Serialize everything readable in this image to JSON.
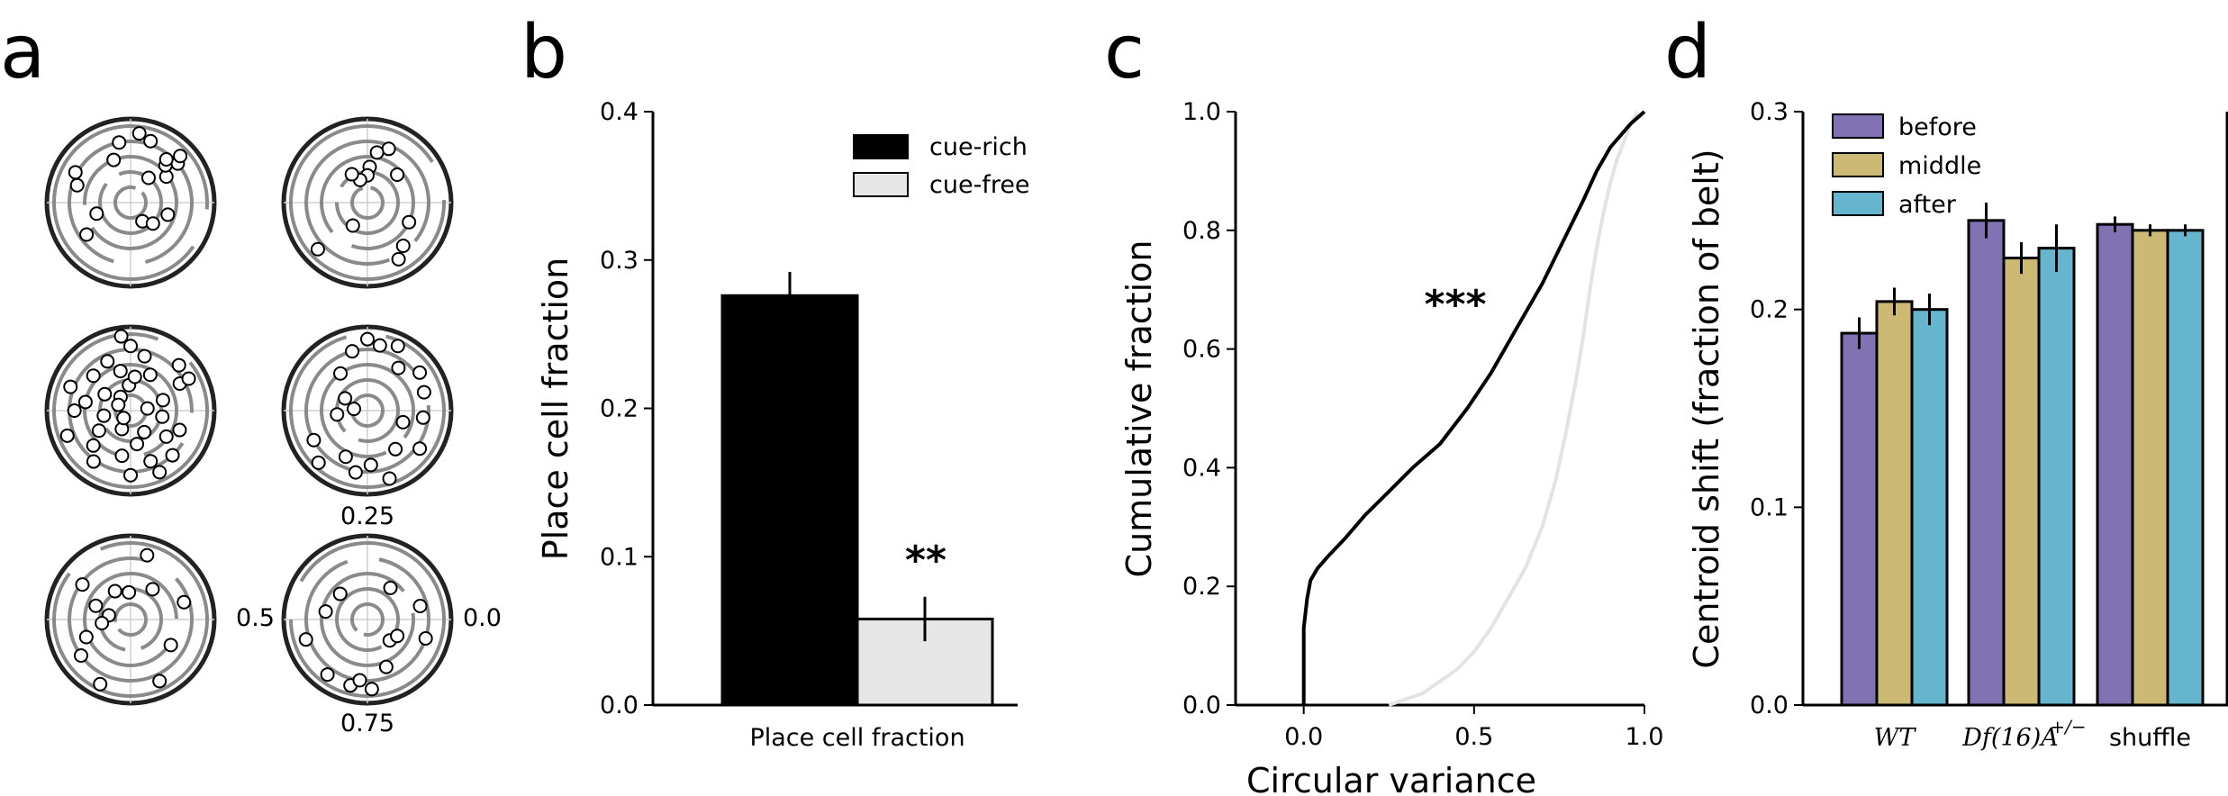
{
  "panels": {
    "a": "a",
    "b": "b",
    "c": "c",
    "d": "d"
  },
  "polar_labels": {
    "top": "0.25",
    "left": "0.5",
    "right": "0.0",
    "bottom": "0.75"
  },
  "colors": {
    "cue_rich": "#000000",
    "cue_free": "#e6e6e6",
    "before": "#8173b3",
    "middle": "#ccb974",
    "after": "#64b5cd",
    "ring": "#8a8a8a",
    "curve_cue_free": "#e3e3e3"
  },
  "chart_data": [
    {
      "panel": "a",
      "type": "scatter",
      "description_rings": 5,
      "plots": [
        {
          "points": [
            [
              0.1,
              0.26
            ],
            [
              0.11,
              0.36
            ],
            [
              0.12,
              0.4
            ],
            [
              0.13,
              0.3
            ],
            [
              0.14,
              0.33
            ],
            [
              0.15,
              0.18
            ],
            [
              0.2,
              0.38
            ],
            [
              0.23,
              0.41
            ],
            [
              0.28,
              0.36
            ],
            [
              0.31,
              0.27
            ],
            [
              0.42,
              0.37
            ],
            [
              0.45,
              0.33
            ],
            [
              0.55,
              0.21
            ],
            [
              0.6,
              0.32
            ],
            [
              0.84,
              0.13
            ],
            [
              0.88,
              0.18
            ],
            [
              0.95,
              0.23
            ]
          ]
        },
        {
          "points": [
            [
              0.12,
              0.24
            ],
            [
              0.19,
              0.34
            ],
            [
              0.22,
              0.3
            ],
            [
              0.24,
              0.21
            ],
            [
              0.25,
              0.16
            ],
            [
              0.3,
              0.14
            ],
            [
              0.33,
              0.19
            ],
            [
              0.62,
              0.4
            ],
            [
              0.66,
              0.16
            ],
            [
              0.83,
              0.38
            ],
            [
              0.86,
              0.33
            ],
            [
              0.93,
              0.27
            ]
          ]
        },
        {
          "points": [
            [
              0.02,
              0.1
            ],
            [
              0.05,
              0.2
            ],
            [
              0.08,
              0.33
            ],
            [
              0.12,
              0.39
            ],
            [
              0.17,
              0.24
            ],
            [
              0.21,
              0.33
            ],
            [
              0.25,
              0.38
            ],
            [
              0.26,
              0.15
            ],
            [
              0.29,
              0.24
            ],
            [
              0.32,
              0.32
            ],
            [
              0.35,
              0.1
            ],
            [
              0.38,
              0.3
            ],
            [
              0.41,
              0.18
            ],
            [
              0.44,
              0.38
            ],
            [
              0.47,
              0.27
            ],
            [
              0.5,
              0.33
            ],
            [
              0.53,
              0.16
            ],
            [
              0.56,
              0.4
            ],
            [
              0.59,
              0.22
            ],
            [
              0.62,
              0.3
            ],
            [
              0.65,
              0.37
            ],
            [
              0.68,
              0.12
            ],
            [
              0.72,
              0.27
            ],
            [
              0.75,
              0.38
            ],
            [
              0.78,
              0.2
            ],
            [
              0.81,
              0.32
            ],
            [
              0.84,
              0.15
            ],
            [
              0.87,
              0.36
            ],
            [
              0.9,
              0.26
            ],
            [
              0.94,
              0.31
            ],
            [
              0.97,
              0.19
            ],
            [
              0.23,
              0.2
            ],
            [
              0.43,
              0.08
            ],
            [
              0.63,
              0.06
            ],
            [
              0.82,
              0.4
            ],
            [
              0.08,
              0.39
            ],
            [
              0.27,
              0.44
            ]
          ]
        },
        {
          "points": [
            [
              0.05,
              0.35
            ],
            [
              0.1,
              0.38
            ],
            [
              0.15,
              0.31
            ],
            [
              0.18,
              0.42
            ],
            [
              0.22,
              0.39
            ],
            [
              0.25,
              0.42
            ],
            [
              0.29,
              0.36
            ],
            [
              0.35,
              0.27
            ],
            [
              0.42,
              0.15
            ],
            [
              0.48,
              0.08
            ],
            [
              0.52,
              0.18
            ],
            [
              0.58,
              0.36
            ],
            [
              0.63,
              0.42
            ],
            [
              0.68,
              0.3
            ],
            [
              0.72,
              0.37
            ],
            [
              0.76,
              0.32
            ],
            [
              0.8,
              0.42
            ],
            [
              0.85,
              0.28
            ],
            [
              0.9,
              0.38
            ],
            [
              0.95,
              0.22
            ],
            [
              0.98,
              0.33
            ]
          ]
        },
        {
          "points": [
            [
              0.05,
              0.33
            ],
            [
              0.15,
              0.22
            ],
            [
              0.21,
              0.39
            ],
            [
              0.26,
              0.16
            ],
            [
              0.33,
              0.19
            ],
            [
              0.4,
              0.35
            ],
            [
              0.44,
              0.22
            ],
            [
              0.47,
              0.13
            ],
            [
              0.52,
              0.17
            ],
            [
              0.56,
              0.28
            ],
            [
              0.6,
              0.36
            ],
            [
              0.68,
              0.42
            ],
            [
              0.82,
              0.4
            ],
            [
              0.91,
              0.28
            ]
          ]
        },
        {
          "points": [
            [
              0.04,
              0.32
            ],
            [
              0.15,
              0.23
            ],
            [
              0.38,
              0.22
            ],
            [
              0.47,
              0.25
            ],
            [
              0.55,
              0.38
            ],
            [
              0.65,
              0.4
            ],
            [
              0.71,
              0.4
            ],
            [
              0.73,
              0.36
            ],
            [
              0.76,
              0.41
            ],
            [
              0.81,
              0.3
            ],
            [
              0.88,
              0.18
            ],
            [
              0.92,
              0.2
            ],
            [
              0.95,
              0.36
            ]
          ]
        }
      ]
    },
    {
      "panel": "b",
      "type": "bar",
      "categories": [
        "Place cell fraction"
      ],
      "series": [
        {
          "name": "cue-rich",
          "values": [
            0.276
          ],
          "errors": [
            0.016
          ]
        },
        {
          "name": "cue-free",
          "values": [
            0.058
          ],
          "errors": [
            0.015
          ]
        }
      ],
      "xlabel": "Place cell fraction",
      "ylabel": "Place cell fraction",
      "ylim": [
        0,
        0.4
      ],
      "yticks": [
        "0.0",
        "0.1",
        "0.2",
        "0.3",
        "0.4"
      ],
      "annotation": "**",
      "legend": "top-right"
    },
    {
      "panel": "c",
      "type": "line",
      "xlabel": "Circular variance",
      "ylabel": "Cumulative fraction",
      "xlim": [
        -0.2,
        1.0
      ],
      "ylim": [
        0,
        1.0
      ],
      "xticks": [
        "0.0",
        "0.5",
        "1.0"
      ],
      "yticks": [
        "0.0",
        "0.2",
        "0.4",
        "0.6",
        "0.8",
        "1.0"
      ],
      "annotation": "***",
      "series": [
        {
          "x": [
            0.0,
            0.0,
            0.01,
            0.02,
            0.04,
            0.07,
            0.12,
            0.18,
            0.25,
            0.32,
            0.4,
            0.48,
            0.55,
            0.62,
            0.7,
            0.76,
            0.82,
            0.86,
            0.9,
            0.93,
            0.96,
            0.98,
            1.0
          ],
          "y": [
            0.0,
            0.13,
            0.18,
            0.21,
            0.23,
            0.25,
            0.28,
            0.32,
            0.36,
            0.4,
            0.44,
            0.5,
            0.56,
            0.63,
            0.71,
            0.78,
            0.85,
            0.9,
            0.94,
            0.96,
            0.98,
            0.99,
            1.0
          ]
        },
        {
          "x": [
            0.25,
            0.3,
            0.35,
            0.4,
            0.45,
            0.5,
            0.55,
            0.6,
            0.65,
            0.7,
            0.74,
            0.77,
            0.8,
            0.82,
            0.84,
            0.86,
            0.88,
            0.9,
            0.92,
            0.94,
            0.96,
            0.98
          ],
          "y": [
            0.0,
            0.01,
            0.02,
            0.04,
            0.06,
            0.09,
            0.13,
            0.18,
            0.23,
            0.3,
            0.38,
            0.46,
            0.55,
            0.62,
            0.7,
            0.77,
            0.83,
            0.88,
            0.92,
            0.95,
            0.98,
            1.0
          ]
        }
      ]
    },
    {
      "panel": "d",
      "type": "bar",
      "categories": [
        "WT",
        "Df(16)A",
        "shuffle"
      ],
      "category_superscripts": [
        "",
        "+/−",
        ""
      ],
      "series": [
        {
          "name": "before",
          "values": [
            0.188,
            0.245,
            0.243
          ],
          "errors": [
            0.008,
            0.009,
            0.004
          ]
        },
        {
          "name": "middle",
          "values": [
            0.204,
            0.226,
            0.24
          ],
          "errors": [
            0.007,
            0.008,
            0.003
          ]
        },
        {
          "name": "after",
          "values": [
            0.2,
            0.231,
            0.24
          ],
          "errors": [
            0.008,
            0.012,
            0.003
          ]
        }
      ],
      "ylabel": "Centroid shift (fraction of belt)",
      "ylim": [
        0,
        0.3
      ],
      "yticks": [
        "0.0",
        "0.1",
        "0.2",
        "0.3"
      ],
      "legend": "top-left"
    }
  ]
}
